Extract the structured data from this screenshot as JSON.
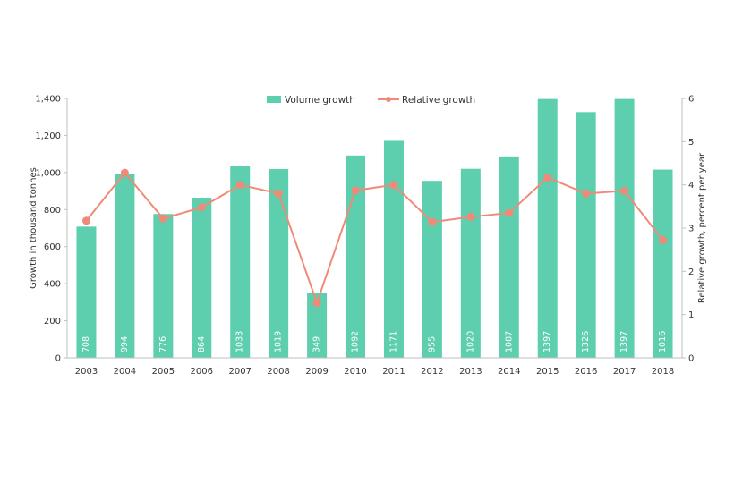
{
  "chart_data": {
    "type": "bar",
    "categories": [
      "2003",
      "2004",
      "2005",
      "2006",
      "2007",
      "2008",
      "2009",
      "2010",
      "2011",
      "2012",
      "2013",
      "2014",
      "2015",
      "2016",
      "2017",
      "2018"
    ],
    "series": [
      {
        "name": "Volume growth",
        "type": "bar",
        "axis": "left",
        "values": [
          708,
          994,
          776,
          864,
          1033,
          1019,
          349,
          1092,
          1171,
          955,
          1020,
          1087,
          1397,
          1326,
          1397,
          1016
        ],
        "data_labels": [
          "708",
          "994",
          "776",
          "864",
          "1033",
          "1019",
          "349",
          "1092",
          "1171",
          "955",
          "1020",
          "1087",
          "1397",
          "1326",
          "1397",
          "1016"
        ]
      },
      {
        "name": "Relative growth",
        "type": "line",
        "axis": "right",
        "values": [
          3.17,
          4.28,
          3.22,
          3.48,
          4.0,
          3.8,
          1.27,
          3.87,
          4.0,
          3.14,
          3.26,
          3.35,
          4.17,
          3.8,
          3.86,
          2.72
        ]
      }
    ],
    "ylabel": "Growth in thousand tonnes",
    "y2label": "Relative growth, percent per year",
    "ylim": [
      0,
      1400
    ],
    "y2lim": [
      0,
      6
    ],
    "y_ticks": [
      "0",
      "200",
      "400",
      "600",
      "800",
      "1,000",
      "1,200",
      "1,400"
    ],
    "y_tick_values": [
      0,
      200,
      400,
      600,
      800,
      1000,
      1200,
      1400
    ],
    "y2_ticks": [
      "0",
      "1",
      "2",
      "3",
      "4",
      "5",
      "6"
    ],
    "y2_tick_values": [
      0,
      1,
      2,
      3,
      4,
      5,
      6
    ],
    "legend_position": "top-center",
    "grid": false,
    "colors": {
      "bar": "#5ecfae",
      "line": "#f08a78",
      "axis": "#bfbfbf"
    }
  }
}
